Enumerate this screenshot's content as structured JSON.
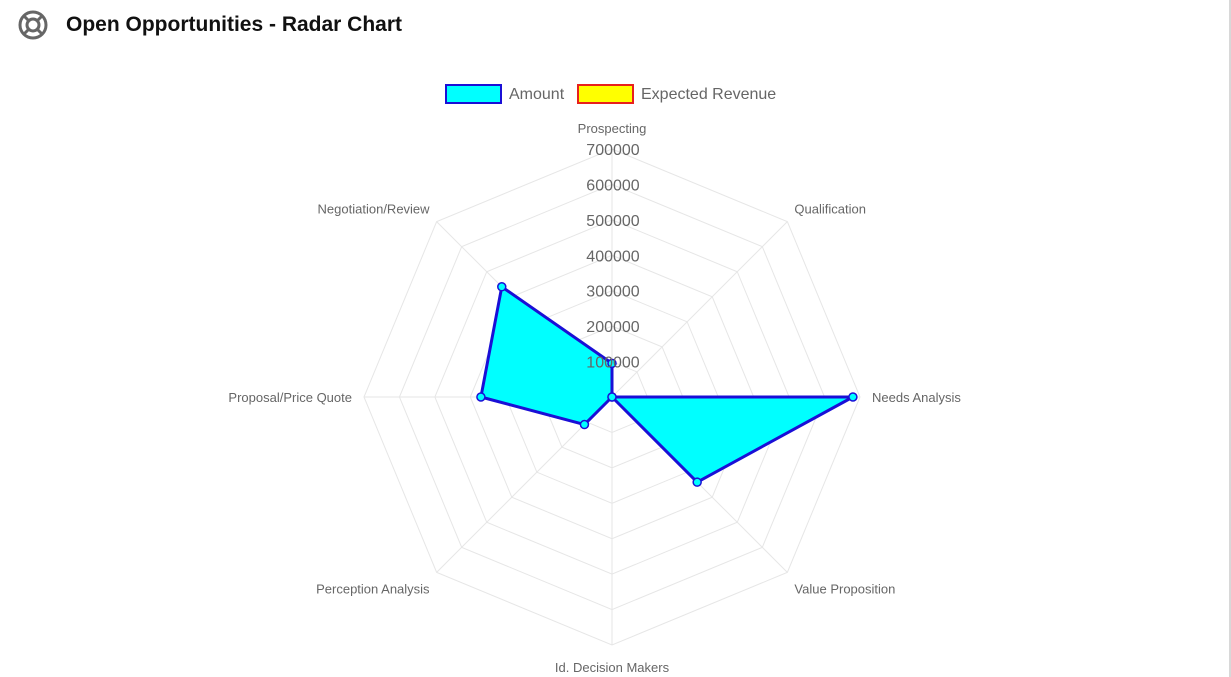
{
  "header": {
    "title": "Open Opportunities - Radar Chart",
    "icon": "lifebuoy-icon"
  },
  "colors": {
    "amount_fill": "#00ffff",
    "amount_stroke": "#1a0fd6",
    "expected_fill": "#ffff00",
    "expected_stroke": "#e8201c",
    "grid": "#e6e6e6",
    "text": "#666666"
  },
  "chart_data": {
    "type": "radar",
    "title": "",
    "categories": [
      "Prospecting",
      "Qualification",
      "Needs Analysis",
      "Value Proposition",
      "Id. Decision Makers",
      "Perception Analysis",
      "Proposal/Price Quote",
      "Negotiation/Review"
    ],
    "series": [
      {
        "name": "Amount",
        "values": [
          95000,
          0,
          680000,
          340000,
          0,
          110000,
          370000,
          440000
        ]
      },
      {
        "name": "Expected Revenue",
        "values": [
          0,
          0,
          0,
          0,
          0,
          0,
          0,
          0
        ]
      }
    ],
    "r_ticks": [
      "100000",
      "200000",
      "300000",
      "400000",
      "500000",
      "600000",
      "700000"
    ],
    "r_range": [
      0,
      700000
    ],
    "grid": true,
    "legend_position": "top"
  }
}
